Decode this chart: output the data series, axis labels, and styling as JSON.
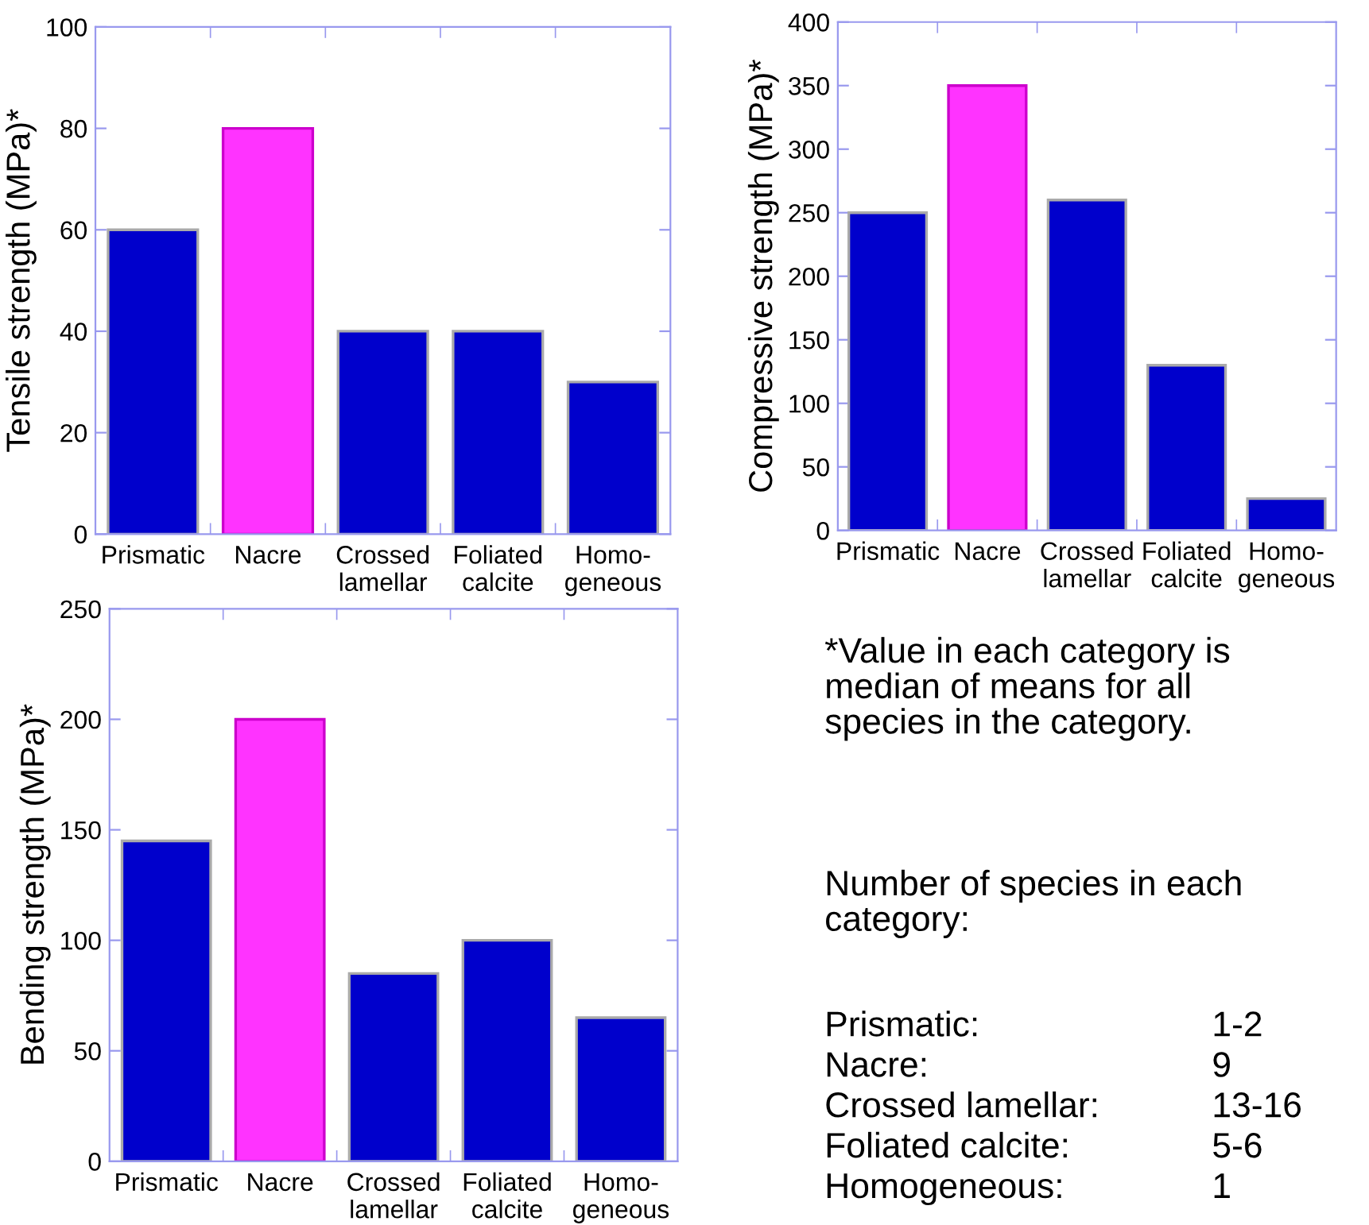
{
  "chart_data": [
    {
      "type": "bar",
      "ylabel": "Tensile strength (MPa)*",
      "categories": [
        "Prismatic",
        "Nacre",
        "Crossed\nlamellar",
        "Foliated\ncalcite",
        "Homo-\ngeneous"
      ],
      "values": [
        60,
        80,
        40,
        40,
        30
      ],
      "colors": [
        "#0000cc",
        "#ff33ff",
        "#0000cc",
        "#0000cc",
        "#0000cc"
      ],
      "ylim": [
        0,
        100
      ],
      "yticks": [
        0,
        20,
        40,
        60,
        80,
        100
      ],
      "grid": false,
      "legend": false
    },
    {
      "type": "bar",
      "ylabel": "Compressive strength (MPa)*",
      "categories": [
        "Prismatic",
        "Nacre",
        "Crossed\nlamellar",
        "Foliated\ncalcite",
        "Homo-\ngeneous"
      ],
      "values": [
        250,
        350,
        260,
        130,
        25
      ],
      "colors": [
        "#0000cc",
        "#ff33ff",
        "#0000cc",
        "#0000cc",
        "#0000cc"
      ],
      "ylim": [
        0,
        400
      ],
      "yticks": [
        0,
        50,
        100,
        150,
        200,
        250,
        300,
        350,
        400
      ],
      "grid": false,
      "legend": false
    },
    {
      "type": "bar",
      "ylabel": "Bending strength (MPa)*",
      "categories": [
        "Prismatic",
        "Nacre",
        "Crossed\nlamellar",
        "Foliated\ncalcite",
        "Homo-\ngeneous"
      ],
      "values": [
        145,
        200,
        85,
        100,
        65
      ],
      "colors": [
        "#0000cc",
        "#ff33ff",
        "#0000cc",
        "#0000cc",
        "#0000cc"
      ],
      "ylim": [
        0,
        250
      ],
      "yticks": [
        0,
        50,
        100,
        150,
        200,
        250
      ],
      "grid": false,
      "legend": false
    },
    {
      "type": "other",
      "annotations": [
        "*Value in each category is\nmedian of means for all\nspecies in the category.",
        "Number of species in each\ncategory:",
        "Prismatic:",
        "1-2",
        "Nacre:",
        "9",
        "Crossed lamellar:",
        "13-16",
        "Foliated calcite:",
        "5-6",
        "Homogeneous:",
        "1"
      ]
    }
  ]
}
